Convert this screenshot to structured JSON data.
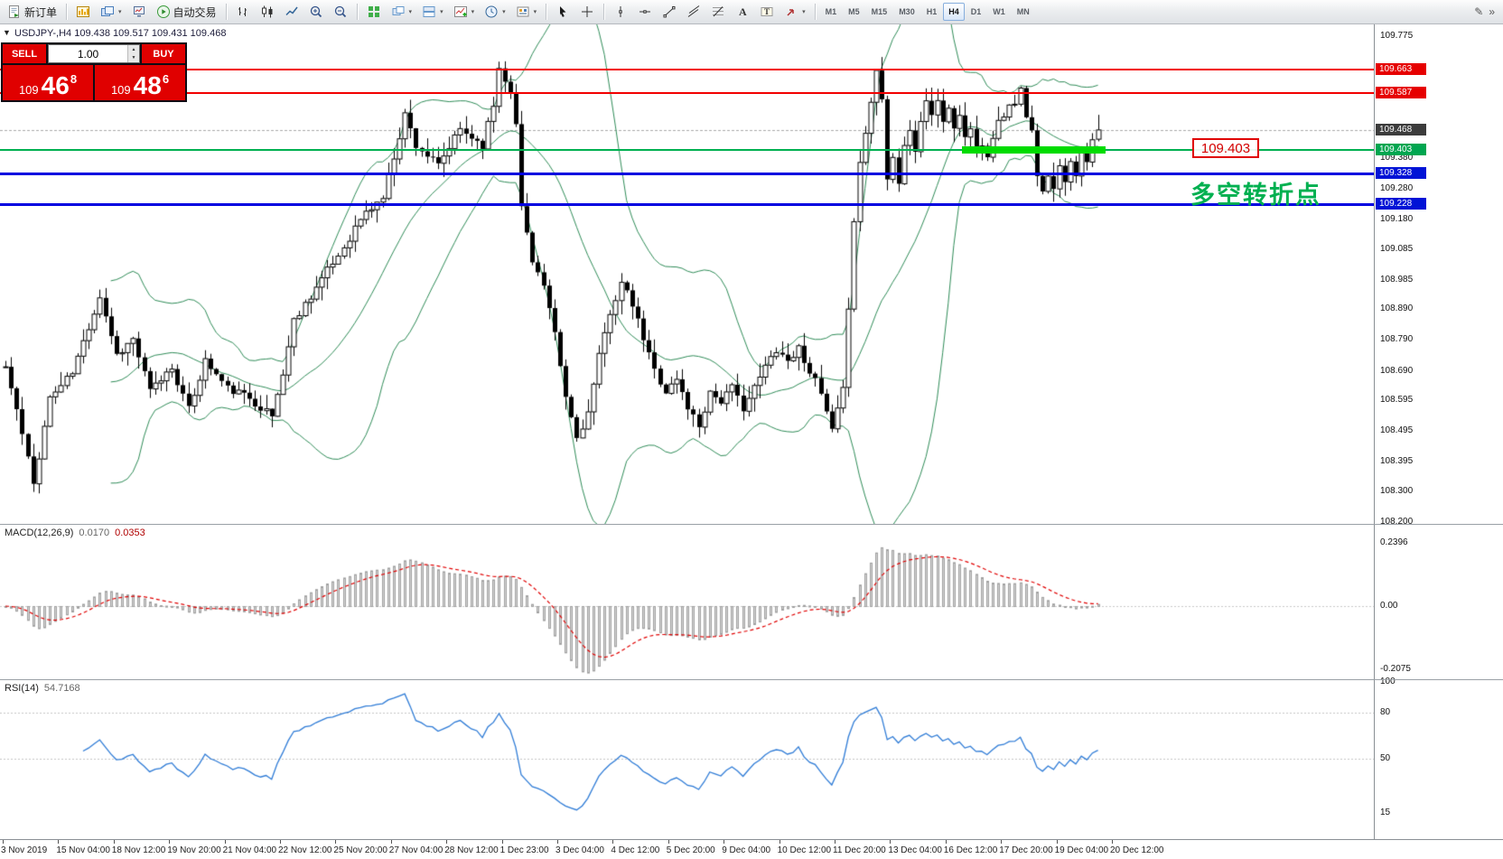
{
  "toolbar": {
    "new_order_label": "新订单",
    "auto_trading_label": "自动交易",
    "timeframes": [
      "M1",
      "M5",
      "M15",
      "M30",
      "H1",
      "H4",
      "D1",
      "W1",
      "MN"
    ],
    "active_timeframe": "H4"
  },
  "symbol_header": "USDJPY-,H4  109.438 109.517 109.431 109.468",
  "trade_panel": {
    "sell_label": "SELL",
    "buy_label": "BUY",
    "volume": "1.00",
    "sell_price": {
      "int": "109",
      "big": "46",
      "sup": "8"
    },
    "buy_price": {
      "int": "109",
      "big": "48",
      "sup": "6"
    }
  },
  "annotations": {
    "price_label": "109.403",
    "note_cn": "多空转折点"
  },
  "levels": {
    "red": [
      109.663,
      109.587
    ],
    "green": 109.403,
    "blue": [
      109.328,
      109.228
    ],
    "current": 109.468,
    "highlight_segment": {
      "price": 109.403,
      "from_index": 173,
      "to_index": 197
    }
  },
  "price_axis": {
    "ticks": [
      "109.775",
      "109.380",
      "109.280",
      "109.180",
      "109.085",
      "108.985",
      "108.890",
      "108.790",
      "108.690",
      "108.595",
      "108.495",
      "108.395",
      "108.300",
      "108.200"
    ],
    "boxes": [
      {
        "value": "109.663",
        "color": "red"
      },
      {
        "value": "109.587",
        "color": "red"
      },
      {
        "value": "109.468",
        "color": "dark"
      },
      {
        "value": "109.403",
        "color": "green"
      },
      {
        "value": "109.328",
        "color": "blue"
      },
      {
        "value": "109.228",
        "color": "blue"
      }
    ]
  },
  "time_axis": [
    "3 Nov 2019",
    "15 Nov 04:00",
    "18 Nov 12:00",
    "19 Nov 20:00",
    "21 Nov 04:00",
    "22 Nov 12:00",
    "25 Nov 20:00",
    "27 Nov 04:00",
    "28 Nov 12:00",
    "1 Dec 23:00",
    "3 Dec 04:00",
    "4 Dec 12:00",
    "5 Dec 20:00",
    "9 Dec 04:00",
    "10 Dec 12:00",
    "11 Dec 20:00",
    "13 Dec 04:00",
    "16 Dec 12:00",
    "17 Dec 20:00",
    "19 Dec 04:00",
    "20 Dec 12:00"
  ],
  "macd": {
    "name": "MACD(12,26,9)",
    "value_main": "0.0170",
    "value_signal": "0.0353",
    "scale_max": "0.2396",
    "scale_zero": "0.00",
    "scale_min": "-0.2075"
  },
  "rsi": {
    "name": "RSI(14)",
    "value": "54.7168",
    "scale_ticks": [
      "100",
      "80",
      "50",
      "15"
    ],
    "levels": [
      80,
      50
    ]
  },
  "chart_data": {
    "type": "candlestick",
    "symbol": "USDJPY-",
    "timeframe": "H4",
    "current_ohlc": {
      "open": 109.438,
      "high": 109.517,
      "low": 109.431,
      "close": 109.468
    },
    "price_range": [
      108.2,
      109.775
    ],
    "candle_count": 198,
    "close_path_anchors": [
      [
        0,
        108.7
      ],
      [
        2,
        108.56
      ],
      [
        5,
        108.32
      ],
      [
        8,
        108.6
      ],
      [
        12,
        108.68
      ],
      [
        17,
        108.93
      ],
      [
        20,
        108.74
      ],
      [
        23,
        108.79
      ],
      [
        26,
        108.62
      ],
      [
        30,
        108.7
      ],
      [
        33,
        108.56
      ],
      [
        36,
        108.72
      ],
      [
        40,
        108.63
      ],
      [
        44,
        108.6
      ],
      [
        48,
        108.54
      ],
      [
        50,
        108.68
      ],
      [
        52,
        108.85
      ],
      [
        56,
        108.96
      ],
      [
        60,
        109.06
      ],
      [
        64,
        109.18
      ],
      [
        68,
        109.25
      ],
      [
        71,
        109.45
      ],
      [
        72,
        109.52
      ],
      [
        74,
        109.42
      ],
      [
        78,
        109.35
      ],
      [
        82,
        109.47
      ],
      [
        86,
        109.42
      ],
      [
        88,
        109.55
      ],
      [
        89,
        109.67
      ],
      [
        91,
        109.6
      ],
      [
        92,
        109.48
      ],
      [
        93,
        109.22
      ],
      [
        95,
        109.05
      ],
      [
        97,
        108.96
      ],
      [
        99,
        108.8
      ],
      [
        101,
        108.6
      ],
      [
        103,
        108.47
      ],
      [
        105,
        108.55
      ],
      [
        107,
        108.73
      ],
      [
        109,
        108.88
      ],
      [
        111,
        108.97
      ],
      [
        113,
        108.9
      ],
      [
        115,
        108.79
      ],
      [
        117,
        108.69
      ],
      [
        119,
        108.62
      ],
      [
        121,
        108.66
      ],
      [
        123,
        108.57
      ],
      [
        125,
        108.51
      ],
      [
        127,
        108.62
      ],
      [
        129,
        108.59
      ],
      [
        131,
        108.63
      ],
      [
        133,
        108.57
      ],
      [
        135,
        108.63
      ],
      [
        137,
        108.7
      ],
      [
        139,
        108.76
      ],
      [
        141,
        108.72
      ],
      [
        143,
        108.76
      ],
      [
        145,
        108.69
      ],
      [
        147,
        108.61
      ],
      [
        149,
        108.49
      ],
      [
        151,
        108.62
      ],
      [
        152,
        108.9
      ],
      [
        153,
        109.18
      ],
      [
        154,
        109.36
      ],
      [
        155,
        109.46
      ],
      [
        156,
        109.56
      ],
      [
        157,
        109.66
      ],
      [
        158,
        109.58
      ],
      [
        159,
        109.32
      ],
      [
        160,
        109.38
      ],
      [
        161,
        109.3
      ],
      [
        162,
        109.42
      ],
      [
        163,
        109.46
      ],
      [
        164,
        109.4
      ],
      [
        165,
        109.5
      ],
      [
        166,
        109.56
      ],
      [
        167,
        109.52
      ],
      [
        168,
        109.55
      ],
      [
        169,
        109.5
      ],
      [
        170,
        109.54
      ],
      [
        171,
        109.48
      ],
      [
        172,
        109.51
      ],
      [
        173,
        109.45
      ],
      [
        174,
        109.47
      ],
      [
        175,
        109.41
      ],
      [
        176,
        109.43
      ],
      [
        177,
        109.39
      ],
      [
        178,
        109.45
      ],
      [
        179,
        109.49
      ],
      [
        180,
        109.52
      ],
      [
        182,
        109.56
      ],
      [
        183,
        109.6
      ],
      [
        184,
        109.5
      ],
      [
        185,
        109.46
      ],
      [
        186,
        109.31
      ],
      [
        187,
        109.28
      ],
      [
        188,
        109.33
      ],
      [
        189,
        109.27
      ],
      [
        190,
        109.36
      ],
      [
        191,
        109.31
      ],
      [
        192,
        109.37
      ],
      [
        193,
        109.33
      ],
      [
        194,
        109.39
      ],
      [
        195,
        109.36
      ],
      [
        196,
        109.43
      ],
      [
        197,
        109.468
      ]
    ],
    "indicators": [
      {
        "name": "Bollinger Bands",
        "period": 20,
        "deviation": 2
      },
      {
        "name": "MACD",
        "fast": 12,
        "slow": 26,
        "signal": 9,
        "values": [
          0.017,
          0.0353
        ],
        "range": [
          -0.2075,
          0.2396
        ]
      },
      {
        "name": "RSI",
        "period": 14,
        "value": 54.7168
      }
    ]
  }
}
